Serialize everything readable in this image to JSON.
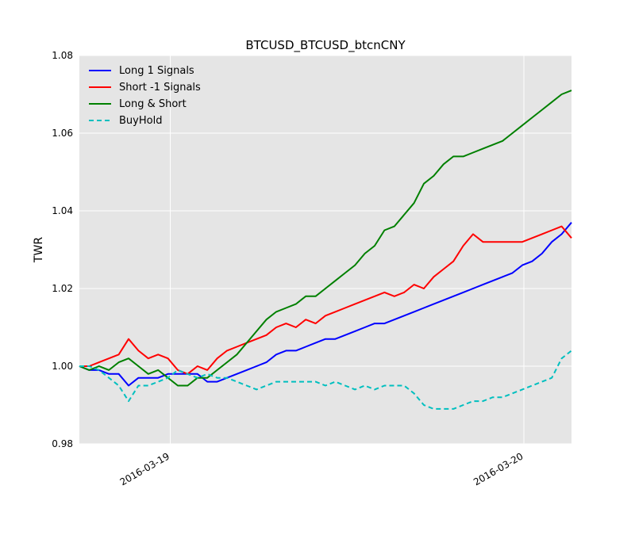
{
  "chart_data": {
    "type": "line",
    "title": "BTCUSD_BTCUSD_btcnCNY",
    "xlabel": "",
    "ylabel": "TWR",
    "ylim": [
      0.98,
      1.08
    ],
    "y_ticks": [
      "0.98",
      "1.00",
      "1.02",
      "1.04",
      "1.06",
      "1.08"
    ],
    "x_ticks": [
      {
        "label": "2016-03-19",
        "x": 0.1847
      },
      {
        "label": "2016-03-20",
        "x": 0.9032
      }
    ],
    "x_range": [
      0.0,
      1.0
    ],
    "grid": true,
    "legend_position": "top-left",
    "series": [
      {
        "name": "Long 1 Signals",
        "color": "#0000ff",
        "style": "solid",
        "x": [
          0.0,
          0.02,
          0.04,
          0.06,
          0.08,
          0.1,
          0.12,
          0.14,
          0.16,
          0.18,
          0.2,
          0.22,
          0.24,
          0.26,
          0.28,
          0.3,
          0.32,
          0.34,
          0.36,
          0.38,
          0.4,
          0.42,
          0.44,
          0.46,
          0.48,
          0.5,
          0.52,
          0.54,
          0.56,
          0.58,
          0.6,
          0.62,
          0.64,
          0.66,
          0.68,
          0.7,
          0.72,
          0.74,
          0.76,
          0.78,
          0.8,
          0.82,
          0.84,
          0.86,
          0.88,
          0.9,
          0.92,
          0.94,
          0.96,
          0.98,
          1.0
        ],
        "values": [
          1.0,
          0.999,
          0.999,
          0.998,
          0.998,
          0.995,
          0.997,
          0.997,
          0.997,
          0.998,
          0.998,
          0.998,
          0.998,
          0.996,
          0.996,
          0.997,
          0.998,
          0.999,
          1.0,
          1.001,
          1.003,
          1.004,
          1.004,
          1.005,
          1.006,
          1.007,
          1.007,
          1.008,
          1.009,
          1.01,
          1.011,
          1.011,
          1.012,
          1.013,
          1.014,
          1.015,
          1.016,
          1.017,
          1.018,
          1.019,
          1.02,
          1.021,
          1.022,
          1.023,
          1.024,
          1.026,
          1.027,
          1.029,
          1.032,
          1.034,
          1.037
        ]
      },
      {
        "name": "Short -1 Signals",
        "color": "#ff0000",
        "style": "solid",
        "x": [
          0.0,
          0.02,
          0.04,
          0.06,
          0.08,
          0.1,
          0.12,
          0.14,
          0.16,
          0.18,
          0.2,
          0.22,
          0.24,
          0.26,
          0.28,
          0.3,
          0.32,
          0.34,
          0.36,
          0.38,
          0.4,
          0.42,
          0.44,
          0.46,
          0.48,
          0.5,
          0.52,
          0.54,
          0.56,
          0.58,
          0.6,
          0.62,
          0.64,
          0.66,
          0.68,
          0.7,
          0.72,
          0.74,
          0.76,
          0.78,
          0.8,
          0.82,
          0.84,
          0.86,
          0.88,
          0.9,
          0.92,
          0.94,
          0.96,
          0.98,
          1.0
        ],
        "values": [
          1.0,
          1.0,
          1.001,
          1.002,
          1.003,
          1.007,
          1.004,
          1.002,
          1.003,
          1.002,
          0.999,
          0.998,
          1.0,
          0.999,
          1.002,
          1.004,
          1.005,
          1.006,
          1.007,
          1.008,
          1.01,
          1.011,
          1.01,
          1.012,
          1.011,
          1.013,
          1.014,
          1.015,
          1.016,
          1.017,
          1.018,
          1.019,
          1.018,
          1.019,
          1.021,
          1.02,
          1.023,
          1.025,
          1.027,
          1.031,
          1.034,
          1.032,
          1.032,
          1.032,
          1.032,
          1.032,
          1.033,
          1.034,
          1.035,
          1.036,
          1.033
        ]
      },
      {
        "name": "Long & Short",
        "color": "#008000",
        "style": "solid",
        "x": [
          0.0,
          0.02,
          0.04,
          0.06,
          0.08,
          0.1,
          0.12,
          0.14,
          0.16,
          0.18,
          0.2,
          0.22,
          0.24,
          0.26,
          0.28,
          0.3,
          0.32,
          0.34,
          0.36,
          0.38,
          0.4,
          0.42,
          0.44,
          0.46,
          0.48,
          0.5,
          0.52,
          0.54,
          0.56,
          0.58,
          0.6,
          0.62,
          0.64,
          0.66,
          0.68,
          0.7,
          0.72,
          0.74,
          0.76,
          0.78,
          0.8,
          0.82,
          0.84,
          0.86,
          0.88,
          0.9,
          0.92,
          0.94,
          0.96,
          0.98,
          1.0
        ],
        "values": [
          1.0,
          0.999,
          1.0,
          0.999,
          1.001,
          1.002,
          1.0,
          0.998,
          0.999,
          0.997,
          0.995,
          0.995,
          0.997,
          0.997,
          0.999,
          1.001,
          1.003,
          1.006,
          1.009,
          1.012,
          1.014,
          1.015,
          1.016,
          1.018,
          1.018,
          1.02,
          1.022,
          1.024,
          1.026,
          1.029,
          1.031,
          1.035,
          1.036,
          1.039,
          1.042,
          1.047,
          1.049,
          1.052,
          1.054,
          1.054,
          1.055,
          1.056,
          1.057,
          1.058,
          1.06,
          1.062,
          1.064,
          1.066,
          1.068,
          1.07,
          1.071
        ]
      },
      {
        "name": "BuyHold",
        "color": "#00bfbf",
        "style": "dashed",
        "x": [
          0.0,
          0.02,
          0.04,
          0.06,
          0.08,
          0.1,
          0.12,
          0.14,
          0.16,
          0.18,
          0.2,
          0.22,
          0.24,
          0.26,
          0.28,
          0.3,
          0.32,
          0.34,
          0.36,
          0.38,
          0.4,
          0.42,
          0.44,
          0.46,
          0.48,
          0.5,
          0.52,
          0.54,
          0.56,
          0.58,
          0.6,
          0.62,
          0.64,
          0.66,
          0.68,
          0.7,
          0.72,
          0.74,
          0.76,
          0.78,
          0.8,
          0.82,
          0.84,
          0.86,
          0.88,
          0.9,
          0.92,
          0.94,
          0.96,
          0.98,
          1.0
        ],
        "values": [
          1.0,
          1.0,
          0.999,
          0.997,
          0.995,
          0.991,
          0.995,
          0.995,
          0.996,
          0.997,
          0.999,
          0.998,
          0.997,
          0.998,
          0.997,
          0.997,
          0.996,
          0.995,
          0.994,
          0.995,
          0.996,
          0.996,
          0.996,
          0.996,
          0.996,
          0.995,
          0.996,
          0.995,
          0.994,
          0.995,
          0.994,
          0.995,
          0.995,
          0.995,
          0.993,
          0.99,
          0.989,
          0.989,
          0.989,
          0.99,
          0.991,
          0.991,
          0.992,
          0.992,
          0.993,
          0.994,
          0.995,
          0.996,
          0.997,
          1.002,
          1.004
        ]
      }
    ]
  }
}
